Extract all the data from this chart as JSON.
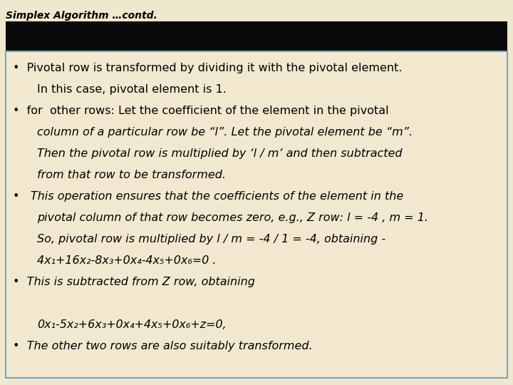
{
  "title": "Simplex Algorithm …contd.",
  "title_fontsize": 10,
  "title_color": "#000000",
  "title_style": "italic",
  "title_weight": "bold",
  "background_color": "#f0e8cc",
  "header_bar_color": "#0a0a0a",
  "box_edge_color": "#6aaacc",
  "box_face_color": "#f2e8d0",
  "font_family": "DejaVu Sans",
  "font_size": 11.5,
  "lines": [
    {
      "text": "•  Pivotal row is transformed by dividing it with the pivotal element.",
      "italic": false,
      "indent": false
    },
    {
      "text": "In this case, pivotal element is 1.",
      "italic": false,
      "indent": true
    },
    {
      "text": "•  for  other rows: Let the coefficient of the element in the pivotal",
      "italic": false,
      "indent": false
    },
    {
      "text": "column of a particular row be “l”. Let the pivotal element be “m”.",
      "italic": true,
      "indent": true
    },
    {
      "text": "Then the pivotal row is multiplied by ‘l / m’ and then subtracted",
      "italic": true,
      "indent": true
    },
    {
      "text": "from that row to be transformed.",
      "italic": true,
      "indent": true
    },
    {
      "text": "•   This operation ensures that the coefficients of the element in the",
      "italic": true,
      "indent": false
    },
    {
      "text": "pivotal column of that row becomes zero, e.g., Z row: l = -4 , m = 1.",
      "italic": true,
      "indent": true
    },
    {
      "text": "So, pivotal row is multiplied by l / m = -4 / 1 = -4, obtaining -",
      "italic": true,
      "indent": true
    },
    {
      "text": "4x₁+16x₂-8x₃+0x₄-4x₅+0x₆=0 .",
      "italic": true,
      "indent": true
    },
    {
      "text": "•  This is subtracted from Z row, obtaining",
      "italic": true,
      "indent": false
    },
    {
      "text": "",
      "italic": false,
      "indent": false
    },
    {
      "text": "0x₁-5x₂+6x₃+0x₄+4x₅+0x₆+z=0,",
      "italic": true,
      "indent": true
    },
    {
      "text": "•  The other two rows are also suitably transformed.",
      "italic": true,
      "indent": false
    }
  ]
}
